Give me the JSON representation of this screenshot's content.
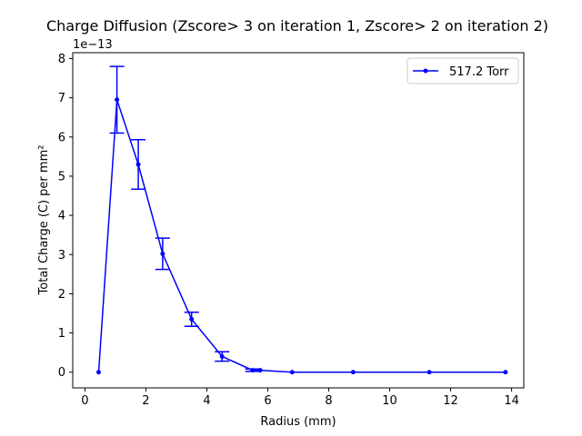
{
  "chart_data": {
    "type": "line",
    "title": "Charge Diffusion (Zscore> 3 on iteration 1, Zscore> 2 on iteration 2)",
    "xlabel": "Radius (mm)",
    "ylabel": "Total Charge (C) per mm²",
    "y_offset_label": "1e−13",
    "xlim": [
      -0.4,
      14.4
    ],
    "ylim": [
      -0.4,
      8.15
    ],
    "x_ticks": [
      0,
      2,
      4,
      6,
      8,
      10,
      12,
      14
    ],
    "x_tick_labels": [
      "0",
      "2",
      "4",
      "6",
      "8",
      "10",
      "12",
      "14"
    ],
    "y_ticks": [
      0,
      1,
      2,
      3,
      4,
      5,
      6,
      7,
      8
    ],
    "y_tick_labels": [
      "0",
      "1",
      "2",
      "3",
      "4",
      "5",
      "6",
      "7",
      "8"
    ],
    "grid": false,
    "legend_position": "top-right",
    "series": [
      {
        "name": "517.2 Torr",
        "color": "#0000ff",
        "marker": "circle",
        "x": [
          0.45,
          1.05,
          1.75,
          2.55,
          3.5,
          4.5,
          5.5,
          5.75,
          6.8,
          8.8,
          11.3,
          13.8
        ],
        "y": [
          0.0,
          6.95,
          5.3,
          3.02,
          1.35,
          0.4,
          0.05,
          0.05,
          0.0,
          0.0,
          0.0,
          0.0
        ],
        "y_err": [
          0.0,
          0.85,
          0.63,
          0.4,
          0.18,
          0.12,
          0.03,
          0.0,
          0.0,
          0.0,
          0.0,
          0.0
        ]
      }
    ]
  }
}
